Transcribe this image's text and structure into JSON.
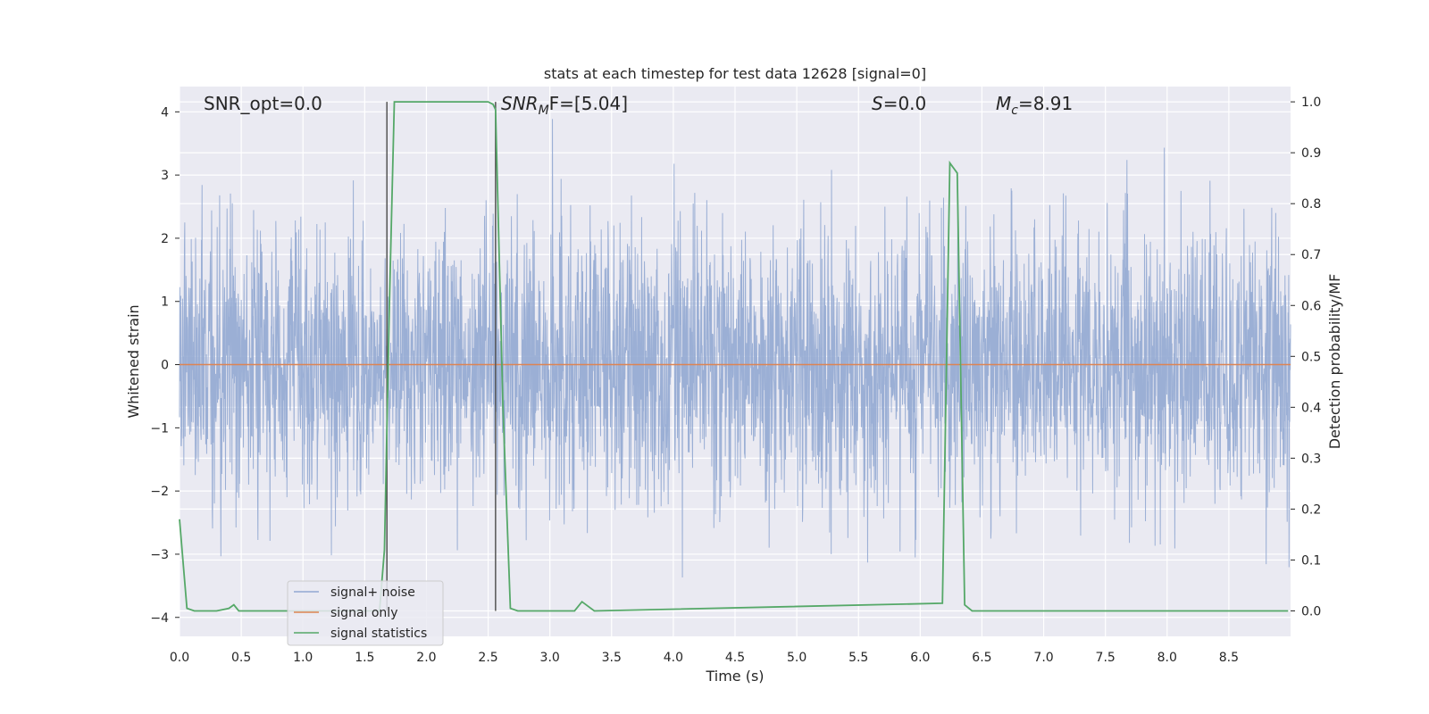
{
  "chart_data": {
    "type": "line",
    "title": "stats at each timestep for test data 12628 [signal=0]",
    "xlabel": "Time (s)",
    "ylabel": "Whitened strain",
    "ylabel_right": "Detection probability/MF",
    "xlim": [
      0.0,
      9.0
    ],
    "ylim": [
      -4.3,
      4.4
    ],
    "ylim_right": [
      -0.05,
      1.03
    ],
    "grid": true,
    "legend_position": "lower-left",
    "x_ticks": [
      "0.0",
      "0.5",
      "1.0",
      "1.5",
      "2.0",
      "2.5",
      "3.0",
      "3.5",
      "4.0",
      "4.5",
      "5.0",
      "5.5",
      "6.0",
      "6.5",
      "7.0",
      "7.5",
      "8.0",
      "8.5"
    ],
    "y_ticks": [
      "4",
      "3",
      "2",
      "1",
      "0",
      "−1",
      "−2",
      "−3",
      "−4"
    ],
    "y_ticks_right": [
      "1.0",
      "0.9",
      "0.8",
      "0.7",
      "0.6",
      "0.5",
      "0.4",
      "0.3",
      "0.2",
      "0.1",
      "0.0"
    ],
    "annotations": {
      "snr_opt": "SNR_opt=0.0",
      "snr_mf_main": "SNR",
      "snr_mf_sub": "M",
      "snr_mf_rest": "F=[5.04]",
      "s_label": "S",
      "s_rest": "=0.0",
      "mc_main": "M",
      "mc_sub": "c",
      "mc_rest": "=8.91"
    },
    "vlines": [
      1.68,
      2.56
    ],
    "series": [
      {
        "name": "signal+ noise",
        "color": "#92a8d1",
        "description": "whitened strain noise, roughly symmetric about 0 with amplitude ~ ±2.5, peaks up to ±4"
      },
      {
        "name": "signal only",
        "color": "#dd8452",
        "values_const": 0.0
      },
      {
        "name": "signal statistics",
        "color": "#55a868",
        "axis": "right",
        "x": [
          0.0,
          0.06,
          0.12,
          0.3,
          0.4,
          0.44,
          0.48,
          1.62,
          1.66,
          1.7,
          1.74,
          2.5,
          2.54,
          2.56,
          2.62,
          2.68,
          2.74,
          3.2,
          3.26,
          3.36,
          6.18,
          6.24,
          6.3,
          6.36,
          6.42,
          8.98
        ],
        "y": [
          0.18,
          0.005,
          0.0,
          0.0,
          0.005,
          0.012,
          0.0,
          0.0,
          0.12,
          0.6,
          1.0,
          1.0,
          0.995,
          0.985,
          0.4,
          0.005,
          0.0,
          0.0,
          0.018,
          0.0,
          0.015,
          0.88,
          0.86,
          0.012,
          0.0,
          0.0
        ]
      }
    ]
  },
  "legend": {
    "items": [
      {
        "label": "signal+ noise",
        "color": "#92a8d1"
      },
      {
        "label": "signal only",
        "color": "#dd8452"
      },
      {
        "label": "signal statistics",
        "color": "#55a868"
      }
    ]
  }
}
